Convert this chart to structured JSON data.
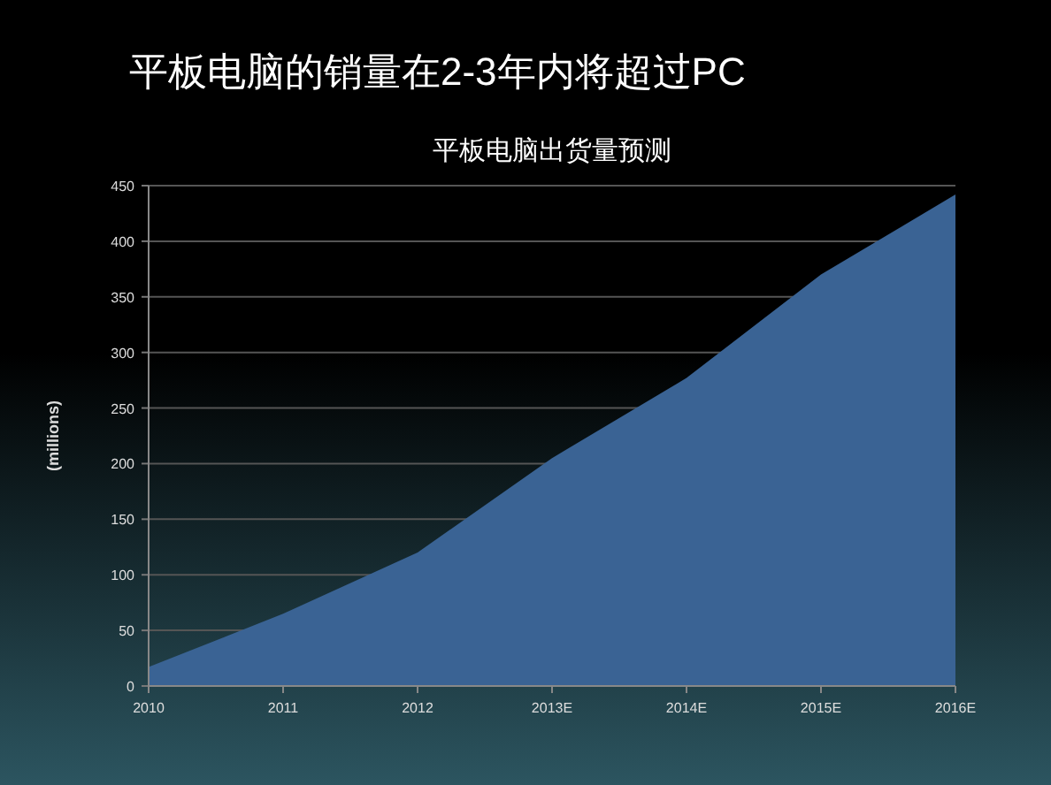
{
  "chart_data": {
    "type": "area",
    "title": "平板电脑的销量在2-3年内将超过PC",
    "subtitle": "平板电脑出货量预测",
    "ylabel": "(millions)",
    "categories": [
      "2010",
      "2011",
      "2012",
      "2013E",
      "2014E",
      "2015E",
      "2016E"
    ],
    "series": [
      {
        "color": "#3a6394",
        "values": [
          17,
          65,
          120,
          205,
          277,
          370,
          442
        ]
      }
    ],
    "ylim": [
      0,
      450
    ],
    "yticks": [
      0,
      50,
      100,
      150,
      200,
      250,
      300,
      350,
      400,
      450
    ],
    "grid": "y"
  }
}
